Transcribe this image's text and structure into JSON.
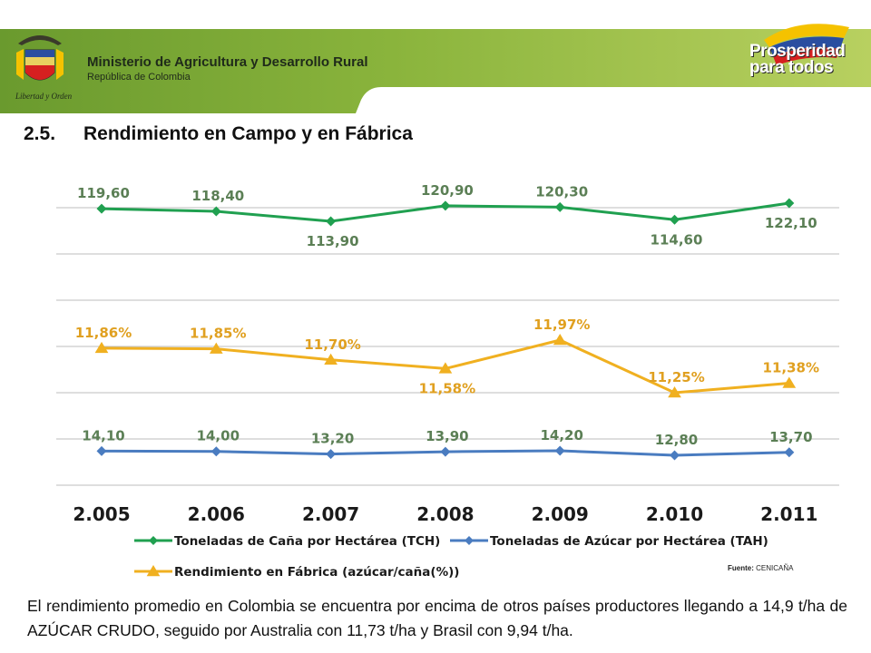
{
  "header": {
    "ministry_name": "Ministerio de Agricultura y Desarrollo Rural",
    "ministry_subtitle": "República de Colombia",
    "motto": "Libertad y Orden",
    "brand_line1": "Prosperidad",
    "brand_line2": "para todos",
    "colors": {
      "green": "#5a8c2a",
      "yellow": "#f5c200",
      "blue": "#2a4ea0",
      "red": "#d62020"
    }
  },
  "section": {
    "number": "2.5.",
    "title": "Rendimiento en Campo y en Fábrica"
  },
  "chart_data": {
    "type": "line",
    "categories": [
      "2.005",
      "2.006",
      "2.007",
      "2.008",
      "2.009",
      "2.010",
      "2.011"
    ],
    "series": [
      {
        "name": "Toneladas de Caña por Hectárea (TCH)",
        "marker": "diamond",
        "color": "#20a050",
        "values": [
          119.6,
          118.4,
          113.9,
          120.9,
          120.3,
          114.6,
          122.1
        ],
        "labels": [
          "119,60",
          "118,40",
          "113,90",
          "120,90",
          "120,30",
          "114,60",
          "122,10"
        ]
      },
      {
        "name": "Rendimiento en Fábrica (azúcar/caña(%))",
        "marker": "triangle",
        "color": "#f0b020",
        "values": [
          11.86,
          11.85,
          11.7,
          11.58,
          11.97,
          11.25,
          11.38
        ],
        "labels": [
          "11,86%",
          "11,85%",
          "11,70%",
          "11,58%",
          "11,97%",
          "11,25%",
          "11,38%"
        ]
      },
      {
        "name": "Toneladas de Azúcar por Hectárea (TAH)",
        "marker": "diamond",
        "color": "#4a7cc0",
        "values": [
          14.1,
          14.0,
          13.2,
          13.9,
          14.2,
          12.8,
          13.7
        ],
        "labels": [
          "14,10",
          "14,00",
          "13,20",
          "13,90",
          "14,20",
          "12,80",
          "13,70"
        ]
      }
    ],
    "legend_position": "bottom",
    "grid": true,
    "label_color": "#5b7f55"
  },
  "source": {
    "label": "Fuente:",
    "value": "CENICAÑA"
  },
  "body_text": "El rendimiento promedio en Colombia se encuentra por encima de otros países productores llegando a 14,9 t/ha de AZÚCAR CRUDO, seguido por Australia con 11,73 t/ha y  Brasil con 9,94 t/ha."
}
